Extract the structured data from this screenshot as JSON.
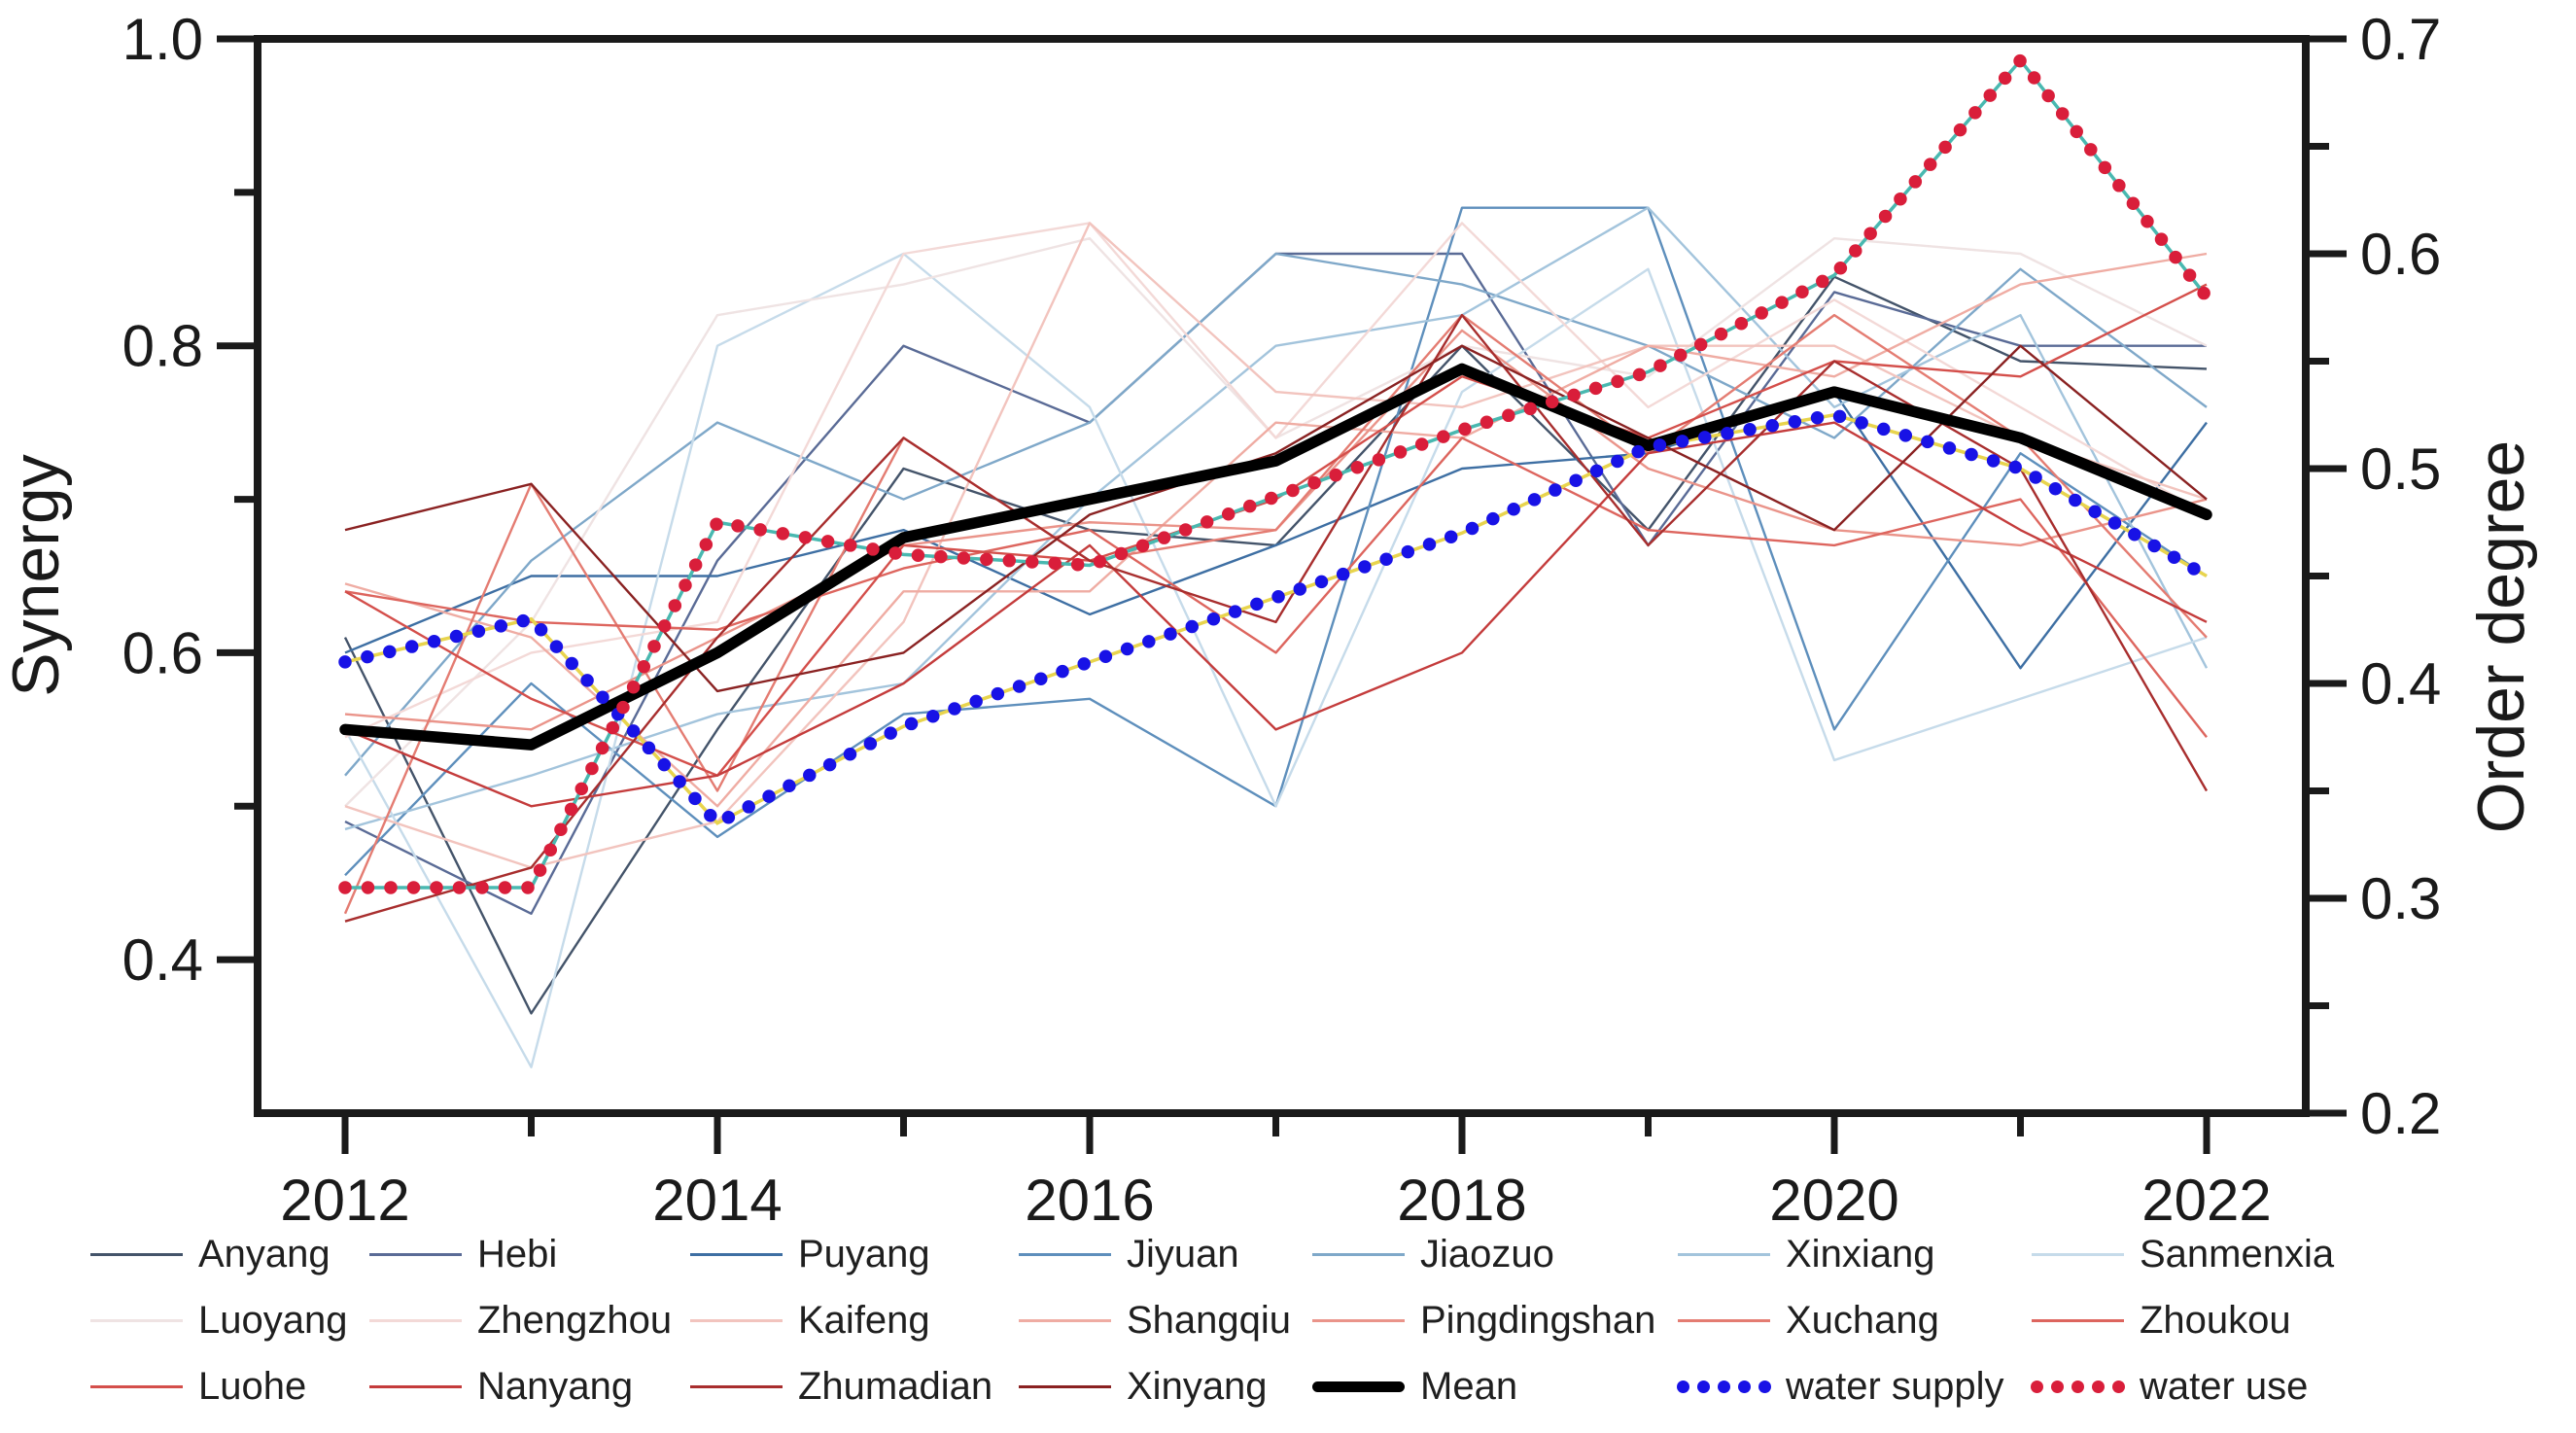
{
  "figure": {
    "background": "#ffffff"
  },
  "chart_data": {
    "type": "line",
    "title": "",
    "xlabel": "",
    "ylabel_left": "Synergy",
    "ylabel_right": "Order degree",
    "x": [
      2012,
      2013,
      2014,
      2015,
      2016,
      2017,
      2018,
      2019,
      2020,
      2021,
      2022
    ],
    "x_tick_labels": [
      "2012",
      "2014",
      "2016",
      "2018",
      "2020",
      "2022"
    ],
    "x_minor_ticks": [
      2013,
      2015,
      2017,
      2019,
      2021
    ],
    "x_frame_range": [
      2011.53,
      2022.53
    ],
    "y_left_range": [
      0.3,
      1.0
    ],
    "y_left_tick_labels": [
      "1.0",
      "0.8",
      "0.6",
      "0.4"
    ],
    "y_left_minor_ticks": [
      0.9,
      0.7,
      0.5
    ],
    "y_right_range": [
      0.2,
      0.7
    ],
    "y_right_tick_labels": [
      "0.7",
      "0.6",
      "0.5",
      "0.4",
      "0.3",
      "0.2"
    ],
    "y_right_minor_ticks": [
      0.65,
      0.55,
      0.45,
      0.35,
      0.25
    ],
    "grid": false,
    "legend_position": "bottom",
    "frame_color": "#1a1a1a",
    "series": [
      {
        "name": "Anyang",
        "axis": "left",
        "style": "city",
        "color": "#44546a",
        "values": [
          0.61,
          0.365,
          0.55,
          0.72,
          0.68,
          0.67,
          0.8,
          0.68,
          0.845,
          0.79,
          0.785
        ]
      },
      {
        "name": "Hebi",
        "axis": "left",
        "style": "city",
        "color": "#5a6b96",
        "values": [
          0.49,
          0.43,
          0.66,
          0.8,
          0.75,
          0.86,
          0.86,
          0.67,
          0.835,
          0.8,
          0.8
        ]
      },
      {
        "name": "Puyang",
        "axis": "left",
        "style": "city",
        "color": "#3e6fa3",
        "values": [
          0.6,
          0.65,
          0.65,
          0.68,
          0.625,
          0.67,
          0.72,
          0.73,
          0.77,
          0.59,
          0.75
        ]
      },
      {
        "name": "Jiyuan",
        "axis": "left",
        "style": "city",
        "color": "#5e8fbc",
        "values": [
          0.455,
          0.58,
          0.48,
          0.56,
          0.57,
          0.5,
          0.89,
          0.89,
          0.55,
          0.73,
          0.65
        ]
      },
      {
        "name": "Jiaozuo",
        "axis": "left",
        "style": "city",
        "color": "#7fa8c9",
        "values": [
          0.52,
          0.66,
          0.75,
          0.7,
          0.75,
          0.86,
          0.84,
          0.8,
          0.74,
          0.85,
          0.76
        ]
      },
      {
        "name": "Xinxiang",
        "axis": "left",
        "style": "city",
        "color": "#a3c4dc",
        "values": [
          0.485,
          0.52,
          0.56,
          0.58,
          0.7,
          0.8,
          0.82,
          0.89,
          0.76,
          0.82,
          0.59
        ]
      },
      {
        "name": "Sanmenxia",
        "axis": "left",
        "style": "city",
        "color": "#c6dbea",
        "values": [
          0.55,
          0.33,
          0.8,
          0.86,
          0.76,
          0.5,
          0.77,
          0.85,
          0.53,
          0.57,
          0.61
        ]
      },
      {
        "name": "Luoyang",
        "axis": "left",
        "style": "city",
        "color": "#efe3e3",
        "values": [
          0.5,
          0.62,
          0.82,
          0.84,
          0.87,
          0.74,
          0.8,
          0.78,
          0.87,
          0.86,
          0.8
        ]
      },
      {
        "name": "Zhengzhou",
        "axis": "left",
        "style": "city",
        "color": "#f3d9d7",
        "values": [
          0.545,
          0.6,
          0.62,
          0.86,
          0.88,
          0.74,
          0.88,
          0.76,
          0.83,
          0.76,
          0.69
        ]
      },
      {
        "name": "Kaifeng",
        "axis": "left",
        "style": "city",
        "color": "#f2c4be",
        "values": [
          0.5,
          0.46,
          0.49,
          0.62,
          0.88,
          0.77,
          0.76,
          0.8,
          0.8,
          0.74,
          0.7
        ]
      },
      {
        "name": "Shangqiu",
        "axis": "left",
        "style": "city",
        "color": "#efaca3",
        "values": [
          0.645,
          0.61,
          0.5,
          0.64,
          0.64,
          0.75,
          0.74,
          0.8,
          0.78,
          0.84,
          0.86
        ]
      },
      {
        "name": "Pingdingshan",
        "axis": "left",
        "style": "city",
        "color": "#ea948a",
        "values": [
          0.56,
          0.55,
          0.61,
          0.67,
          0.685,
          0.68,
          0.81,
          0.72,
          0.68,
          0.67,
          0.7
        ]
      },
      {
        "name": "Xuchang",
        "axis": "left",
        "style": "city",
        "color": "#e47c72",
        "values": [
          0.43,
          0.71,
          0.51,
          0.74,
          0.66,
          0.68,
          0.82,
          0.73,
          0.82,
          0.74,
          0.61
        ]
      },
      {
        "name": "Zhoukou",
        "axis": "left",
        "style": "city",
        "color": "#dd655e",
        "values": [
          0.64,
          0.62,
          0.615,
          0.655,
          0.68,
          0.6,
          0.74,
          0.68,
          0.67,
          0.7,
          0.545
        ]
      },
      {
        "name": "Luohe",
        "axis": "left",
        "style": "city",
        "color": "#d44f4b",
        "values": [
          0.64,
          0.57,
          0.52,
          0.67,
          0.66,
          0.7,
          0.78,
          0.74,
          0.79,
          0.78,
          0.84
        ]
      },
      {
        "name": "Nanyang",
        "axis": "left",
        "style": "city",
        "color": "#c43c3c",
        "values": [
          0.55,
          0.5,
          0.52,
          0.58,
          0.67,
          0.55,
          0.6,
          0.73,
          0.75,
          0.68,
          0.62
        ]
      },
      {
        "name": "Zhumadian",
        "axis": "left",
        "style": "city",
        "color": "#a82e2e",
        "values": [
          0.425,
          0.46,
          0.61,
          0.74,
          0.66,
          0.62,
          0.82,
          0.67,
          0.79,
          0.72,
          0.51
        ]
      },
      {
        "name": "Xinyang",
        "axis": "left",
        "style": "city",
        "color": "#8a2222",
        "values": [
          0.68,
          0.71,
          0.575,
          0.6,
          0.69,
          0.73,
          0.8,
          0.74,
          0.68,
          0.8,
          0.7
        ]
      },
      {
        "name": "Mean",
        "axis": "left",
        "style": "mean",
        "color": "#000000",
        "values": [
          0.55,
          0.54,
          0.6,
          0.675,
          0.7,
          0.725,
          0.785,
          0.735,
          0.77,
          0.74,
          0.69
        ]
      },
      {
        "name": "water supply",
        "axis": "right",
        "style": "dots",
        "color": "#1812e6",
        "connector": "#e8d44d",
        "values": [
          0.41,
          0.43,
          0.335,
          0.38,
          0.41,
          0.44,
          0.47,
          0.51,
          0.525,
          0.5,
          0.45
        ]
      },
      {
        "name": "water use",
        "axis": "right",
        "style": "dots",
        "color": "#d91e3a",
        "connector": "#49b8b0",
        "values": [
          0.305,
          0.305,
          0.475,
          0.46,
          0.455,
          0.487,
          0.518,
          0.545,
          0.59,
          0.69,
          0.58
        ]
      }
    ]
  }
}
